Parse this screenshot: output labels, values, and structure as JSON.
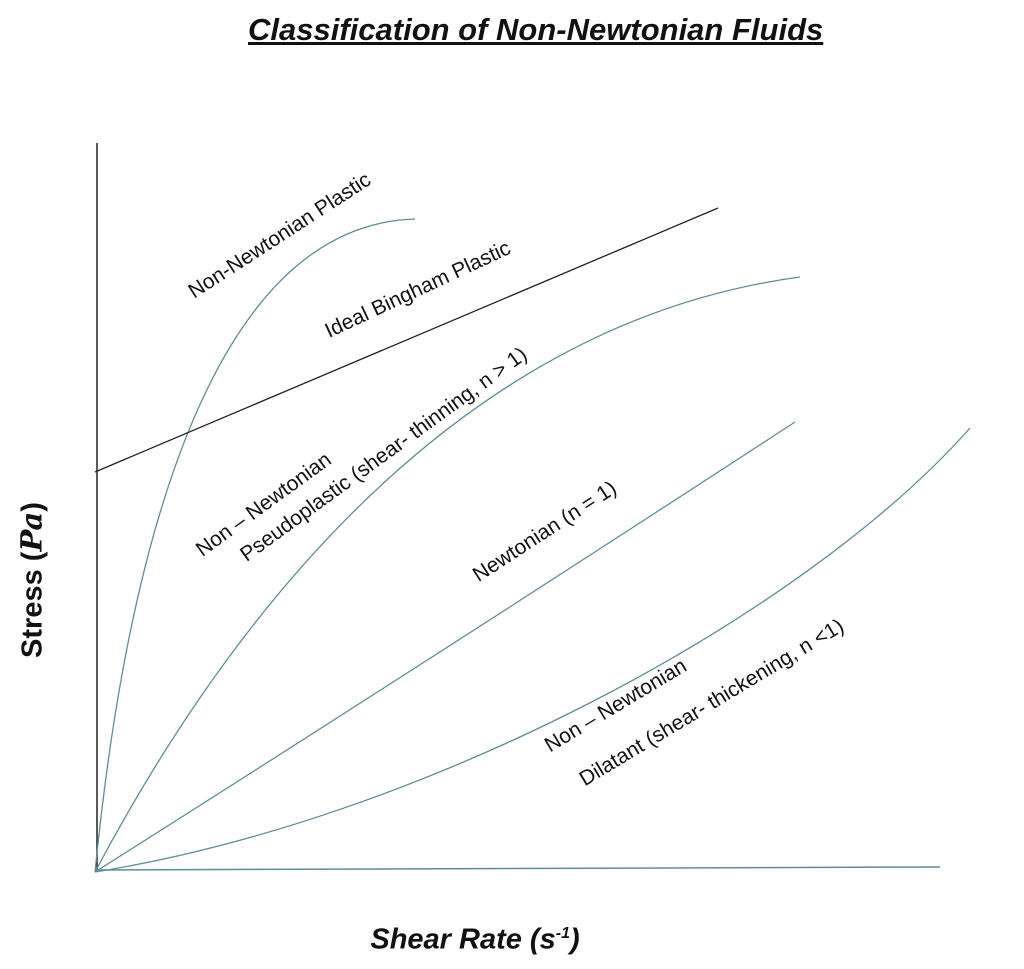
{
  "title": "Classification of Non-Newtonian Fluids",
  "axes": {
    "y_label": "Stress",
    "y_unit": "Pa",
    "x_label": "Shear Rate",
    "x_unit_base": "s",
    "x_unit_exp": "-1"
  },
  "colors": {
    "curves": "#5f8c9b",
    "bingham": "#222222",
    "axes": "#222222"
  },
  "curves": [
    {
      "id": "plastic",
      "label": "Non-Newtonian Plastic"
    },
    {
      "id": "bingham",
      "label": "Ideal Bingham Plastic"
    },
    {
      "id": "pseudo",
      "label_line1": "Non – Newtonian",
      "label_line2": "Pseudoplastic (shear- thinning, n > 1)"
    },
    {
      "id": "newtonian",
      "label": "Newtonian  (n = 1)"
    },
    {
      "id": "dilatant",
      "label_line1": "Non – Newtonian",
      "label_line2": "Dilatant (shear- thickening, n <1)"
    }
  ]
}
